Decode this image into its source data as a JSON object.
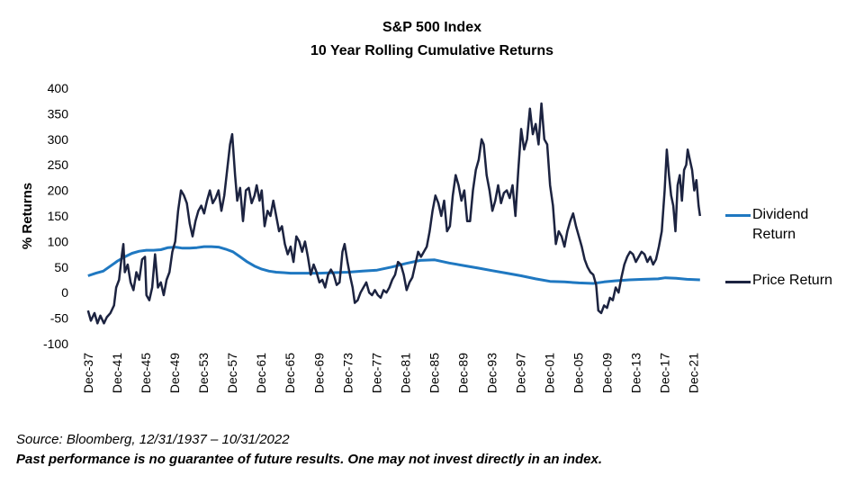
{
  "chart_data": {
    "type": "line",
    "title": "S&P 500 Index",
    "subtitle": "10 Year Rolling Cumulative Returns",
    "xlabel": "",
    "ylabel": "% Returns",
    "ylim": [
      -100,
      400
    ],
    "yticks": [
      -100,
      -50,
      0,
      50,
      100,
      150,
      200,
      250,
      300,
      350,
      400
    ],
    "xlim": [
      1937.92,
      2022.83
    ],
    "xticks": [
      {
        "label": "Dec-37",
        "x": 1937.92
      },
      {
        "label": "Dec-41",
        "x": 1941.92
      },
      {
        "label": "Dec-45",
        "x": 1945.92
      },
      {
        "label": "Dec-49",
        "x": 1949.92
      },
      {
        "label": "Dec-53",
        "x": 1953.92
      },
      {
        "label": "Dec-57",
        "x": 1957.92
      },
      {
        "label": "Dec-61",
        "x": 1961.92
      },
      {
        "label": "Dec-65",
        "x": 1965.92
      },
      {
        "label": "Dec-69",
        "x": 1969.92
      },
      {
        "label": "Dec-73",
        "x": 1973.92
      },
      {
        "label": "Dec-77",
        "x": 1977.92
      },
      {
        "label": "Dec-81",
        "x": 1981.92
      },
      {
        "label": "Dec-85",
        "x": 1985.92
      },
      {
        "label": "Dec-89",
        "x": 1989.92
      },
      {
        "label": "Dec-93",
        "x": 1993.92
      },
      {
        "label": "Dec-97",
        "x": 1997.92
      },
      {
        "label": "Dec-01",
        "x": 2001.92
      },
      {
        "label": "Dec-05",
        "x": 2005.92
      },
      {
        "label": "Dec-09",
        "x": 2009.92
      },
      {
        "label": "Dec-13",
        "x": 2013.92
      },
      {
        "label": "Dec-17",
        "x": 2017.92
      },
      {
        "label": "Dec-21",
        "x": 2021.92
      }
    ],
    "legend_position": "right",
    "series": [
      {
        "name": "Dividend Return",
        "color": "#1f78c1",
        "points": [
          [
            1937.9,
            33
          ],
          [
            1939.0,
            38
          ],
          [
            1940.0,
            42
          ],
          [
            1941.0,
            52
          ],
          [
            1942.0,
            62
          ],
          [
            1943.0,
            70
          ],
          [
            1944.0,
            77
          ],
          [
            1945.0,
            81
          ],
          [
            1946.0,
            83
          ],
          [
            1947.0,
            83
          ],
          [
            1948.0,
            84
          ],
          [
            1949.0,
            88
          ],
          [
            1950.0,
            89
          ],
          [
            1951.0,
            87
          ],
          [
            1952.0,
            87
          ],
          [
            1953.0,
            88
          ],
          [
            1954.0,
            90
          ],
          [
            1955.0,
            90
          ],
          [
            1956.0,
            89
          ],
          [
            1957.0,
            85
          ],
          [
            1958.0,
            80
          ],
          [
            1959.0,
            70
          ],
          [
            1960.0,
            60
          ],
          [
            1961.0,
            52
          ],
          [
            1962.0,
            46
          ],
          [
            1963.0,
            42
          ],
          [
            1964.0,
            40
          ],
          [
            1965.0,
            39
          ],
          [
            1966.0,
            38
          ],
          [
            1968.0,
            38
          ],
          [
            1970.0,
            38
          ],
          [
            1972.0,
            39
          ],
          [
            1974.0,
            40
          ],
          [
            1976.0,
            42
          ],
          [
            1978.0,
            44
          ],
          [
            1980.0,
            50
          ],
          [
            1982.0,
            57
          ],
          [
            1984.0,
            63
          ],
          [
            1986.0,
            64
          ],
          [
            1988.0,
            58
          ],
          [
            1990.0,
            53
          ],
          [
            1992.0,
            48
          ],
          [
            1994.0,
            43
          ],
          [
            1996.0,
            38
          ],
          [
            1998.0,
            33
          ],
          [
            2000.0,
            27
          ],
          [
            2002.0,
            22
          ],
          [
            2004.0,
            21
          ],
          [
            2006.0,
            19
          ],
          [
            2008.0,
            18
          ],
          [
            2009.5,
            21
          ],
          [
            2011.0,
            23
          ],
          [
            2013.0,
            25
          ],
          [
            2015.0,
            26
          ],
          [
            2017.0,
            27
          ],
          [
            2018.0,
            29
          ],
          [
            2019.5,
            28
          ],
          [
            2021.0,
            26
          ],
          [
            2022.8,
            25
          ]
        ]
      },
      {
        "name": "Price Return",
        "color": "#1c2340",
        "points": [
          [
            1937.9,
            -35
          ],
          [
            1938.3,
            -55
          ],
          [
            1938.8,
            -40
          ],
          [
            1939.2,
            -60
          ],
          [
            1939.6,
            -45
          ],
          [
            1940.1,
            -60
          ],
          [
            1940.5,
            -48
          ],
          [
            1941.0,
            -40
          ],
          [
            1941.5,
            -25
          ],
          [
            1941.8,
            10
          ],
          [
            1942.2,
            25
          ],
          [
            1942.6,
            75
          ],
          [
            1942.8,
            95
          ],
          [
            1943.0,
            40
          ],
          [
            1943.4,
            55
          ],
          [
            1943.8,
            20
          ],
          [
            1944.2,
            5
          ],
          [
            1944.6,
            40
          ],
          [
            1945.0,
            25
          ],
          [
            1945.4,
            65
          ],
          [
            1945.8,
            70
          ],
          [
            1946.0,
            -5
          ],
          [
            1946.4,
            -15
          ],
          [
            1946.8,
            10
          ],
          [
            1947.2,
            75
          ],
          [
            1947.6,
            10
          ],
          [
            1948.0,
            20
          ],
          [
            1948.4,
            -5
          ],
          [
            1948.8,
            25
          ],
          [
            1949.2,
            40
          ],
          [
            1949.6,
            80
          ],
          [
            1950.0,
            100
          ],
          [
            1950.4,
            160
          ],
          [
            1950.8,
            200
          ],
          [
            1951.2,
            190
          ],
          [
            1951.6,
            175
          ],
          [
            1952.0,
            135
          ],
          [
            1952.4,
            110
          ],
          [
            1952.8,
            140
          ],
          [
            1953.2,
            160
          ],
          [
            1953.6,
            170
          ],
          [
            1954.0,
            155
          ],
          [
            1954.4,
            180
          ],
          [
            1954.8,
            200
          ],
          [
            1955.2,
            175
          ],
          [
            1955.6,
            185
          ],
          [
            1956.0,
            200
          ],
          [
            1956.4,
            160
          ],
          [
            1956.8,
            190
          ],
          [
            1957.2,
            240
          ],
          [
            1957.6,
            290
          ],
          [
            1957.9,
            310
          ],
          [
            1958.3,
            230
          ],
          [
            1958.6,
            180
          ],
          [
            1959.0,
            205
          ],
          [
            1959.4,
            140
          ],
          [
            1959.8,
            200
          ],
          [
            1960.2,
            205
          ],
          [
            1960.6,
            175
          ],
          [
            1961.0,
            190
          ],
          [
            1961.3,
            210
          ],
          [
            1961.7,
            180
          ],
          [
            1962.0,
            200
          ],
          [
            1962.4,
            130
          ],
          [
            1962.8,
            160
          ],
          [
            1963.2,
            150
          ],
          [
            1963.6,
            180
          ],
          [
            1964.0,
            150
          ],
          [
            1964.4,
            120
          ],
          [
            1964.8,
            130
          ],
          [
            1965.2,
            95
          ],
          [
            1965.6,
            75
          ],
          [
            1966.0,
            90
          ],
          [
            1966.4,
            60
          ],
          [
            1966.8,
            110
          ],
          [
            1967.2,
            100
          ],
          [
            1967.6,
            80
          ],
          [
            1968.0,
            100
          ],
          [
            1968.4,
            70
          ],
          [
            1968.8,
            35
          ],
          [
            1969.2,
            55
          ],
          [
            1969.6,
            40
          ],
          [
            1970.0,
            20
          ],
          [
            1970.4,
            25
          ],
          [
            1970.8,
            10
          ],
          [
            1971.2,
            35
          ],
          [
            1971.6,
            45
          ],
          [
            1972.0,
            35
          ],
          [
            1972.4,
            15
          ],
          [
            1972.8,
            20
          ],
          [
            1973.2,
            80
          ],
          [
            1973.5,
            95
          ],
          [
            1973.9,
            60
          ],
          [
            1974.3,
            30
          ],
          [
            1974.6,
            10
          ],
          [
            1974.9,
            -20
          ],
          [
            1975.3,
            -15
          ],
          [
            1975.7,
            0
          ],
          [
            1976.1,
            10
          ],
          [
            1976.5,
            20
          ],
          [
            1976.9,
            0
          ],
          [
            1977.3,
            -5
          ],
          [
            1977.7,
            5
          ],
          [
            1978.1,
            -5
          ],
          [
            1978.5,
            -10
          ],
          [
            1978.9,
            5
          ],
          [
            1979.3,
            0
          ],
          [
            1979.7,
            10
          ],
          [
            1980.1,
            25
          ],
          [
            1980.5,
            35
          ],
          [
            1980.9,
            60
          ],
          [
            1981.3,
            55
          ],
          [
            1981.7,
            35
          ],
          [
            1982.1,
            5
          ],
          [
            1982.5,
            20
          ],
          [
            1982.9,
            30
          ],
          [
            1983.3,
            55
          ],
          [
            1983.7,
            80
          ],
          [
            1984.1,
            70
          ],
          [
            1984.5,
            80
          ],
          [
            1984.9,
            90
          ],
          [
            1985.3,
            120
          ],
          [
            1985.7,
            160
          ],
          [
            1986.1,
            190
          ],
          [
            1986.5,
            175
          ],
          [
            1986.9,
            150
          ],
          [
            1987.3,
            180
          ],
          [
            1987.7,
            120
          ],
          [
            1988.1,
            130
          ],
          [
            1988.5,
            190
          ],
          [
            1988.9,
            230
          ],
          [
            1989.3,
            210
          ],
          [
            1989.7,
            180
          ],
          [
            1990.1,
            200
          ],
          [
            1990.5,
            140
          ],
          [
            1990.9,
            140
          ],
          [
            1991.3,
            200
          ],
          [
            1991.7,
            240
          ],
          [
            1992.1,
            260
          ],
          [
            1992.5,
            300
          ],
          [
            1992.8,
            290
          ],
          [
            1993.2,
            230
          ],
          [
            1993.6,
            200
          ],
          [
            1994.0,
            160
          ],
          [
            1994.4,
            180
          ],
          [
            1994.8,
            210
          ],
          [
            1995.2,
            175
          ],
          [
            1995.6,
            195
          ],
          [
            1996.0,
            200
          ],
          [
            1996.4,
            185
          ],
          [
            1996.8,
            210
          ],
          [
            1997.2,
            150
          ],
          [
            1997.6,
            240
          ],
          [
            1998.0,
            320
          ],
          [
            1998.4,
            280
          ],
          [
            1998.8,
            300
          ],
          [
            1999.2,
            360
          ],
          [
            1999.6,
            310
          ],
          [
            2000.0,
            330
          ],
          [
            2000.4,
            290
          ],
          [
            2000.8,
            370
          ],
          [
            2001.2,
            300
          ],
          [
            2001.6,
            290
          ],
          [
            2002.0,
            210
          ],
          [
            2002.4,
            170
          ],
          [
            2002.8,
            95
          ],
          [
            2003.2,
            120
          ],
          [
            2003.6,
            110
          ],
          [
            2004.0,
            90
          ],
          [
            2004.4,
            120
          ],
          [
            2004.8,
            140
          ],
          [
            2005.2,
            155
          ],
          [
            2005.6,
            130
          ],
          [
            2006.0,
            110
          ],
          [
            2006.4,
            90
          ],
          [
            2006.8,
            65
          ],
          [
            2007.2,
            50
          ],
          [
            2007.6,
            40
          ],
          [
            2008.0,
            35
          ],
          [
            2008.4,
            15
          ],
          [
            2008.7,
            -35
          ],
          [
            2009.1,
            -40
          ],
          [
            2009.5,
            -25
          ],
          [
            2009.9,
            -30
          ],
          [
            2010.3,
            -10
          ],
          [
            2010.7,
            -15
          ],
          [
            2011.1,
            10
          ],
          [
            2011.5,
            0
          ],
          [
            2011.9,
            30
          ],
          [
            2012.3,
            55
          ],
          [
            2012.7,
            70
          ],
          [
            2013.1,
            80
          ],
          [
            2013.5,
            75
          ],
          [
            2013.9,
            60
          ],
          [
            2014.3,
            70
          ],
          [
            2014.7,
            80
          ],
          [
            2015.1,
            75
          ],
          [
            2015.5,
            60
          ],
          [
            2015.9,
            70
          ],
          [
            2016.3,
            55
          ],
          [
            2016.7,
            65
          ],
          [
            2017.1,
            90
          ],
          [
            2017.5,
            120
          ],
          [
            2017.9,
            200
          ],
          [
            2018.2,
            280
          ],
          [
            2018.5,
            230
          ],
          [
            2018.8,
            190
          ],
          [
            2019.1,
            170
          ],
          [
            2019.4,
            120
          ],
          [
            2019.7,
            210
          ],
          [
            2020.0,
            230
          ],
          [
            2020.3,
            180
          ],
          [
            2020.6,
            240
          ],
          [
            2020.9,
            250
          ],
          [
            2021.1,
            280
          ],
          [
            2021.4,
            260
          ],
          [
            2021.7,
            240
          ],
          [
            2022.0,
            200
          ],
          [
            2022.3,
            220
          ],
          [
            2022.6,
            170
          ],
          [
            2022.8,
            150
          ]
        ]
      }
    ]
  },
  "footnote": {
    "source": "Source: Bloomberg, 12/31/1937 – 10/31/2022",
    "disclaimer": "Past performance is no guarantee of future results. One may not invest directly in an index."
  }
}
